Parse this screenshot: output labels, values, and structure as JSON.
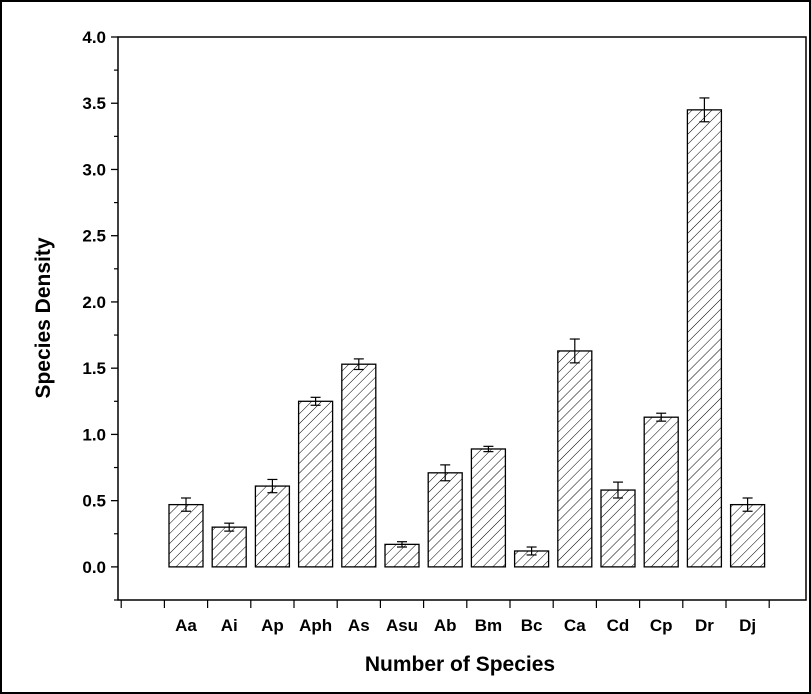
{
  "chart_data": {
    "type": "bar",
    "title": "",
    "xlabel": "Number of Species",
    "ylabel": "Species Density",
    "categories": [
      "Aa",
      "Ai",
      "Ap",
      "Aph",
      "As",
      "Asu",
      "Ab",
      "Bm",
      "Bc",
      "Ca",
      "Cd",
      "Cp",
      "Dr",
      "Dj"
    ],
    "values": [
      0.47,
      0.3,
      0.61,
      1.25,
      1.53,
      0.17,
      0.71,
      0.89,
      0.12,
      1.63,
      0.58,
      1.13,
      3.45,
      0.47
    ],
    "errors": [
      0.05,
      0.03,
      0.05,
      0.03,
      0.04,
      0.02,
      0.06,
      0.02,
      0.03,
      0.09,
      0.06,
      0.03,
      0.09,
      0.05
    ],
    "yticks": [
      "0.0",
      "0.5",
      "1.0",
      "1.5",
      "2.0",
      "2.5",
      "3.0",
      "3.5",
      "4.0"
    ],
    "ylim": [
      -0.25,
      4.0
    ],
    "grid": false,
    "legend": "none",
    "fill_pattern": "diagonal-hatch",
    "bar_color": "#ffffff",
    "line_color": "#000000"
  }
}
